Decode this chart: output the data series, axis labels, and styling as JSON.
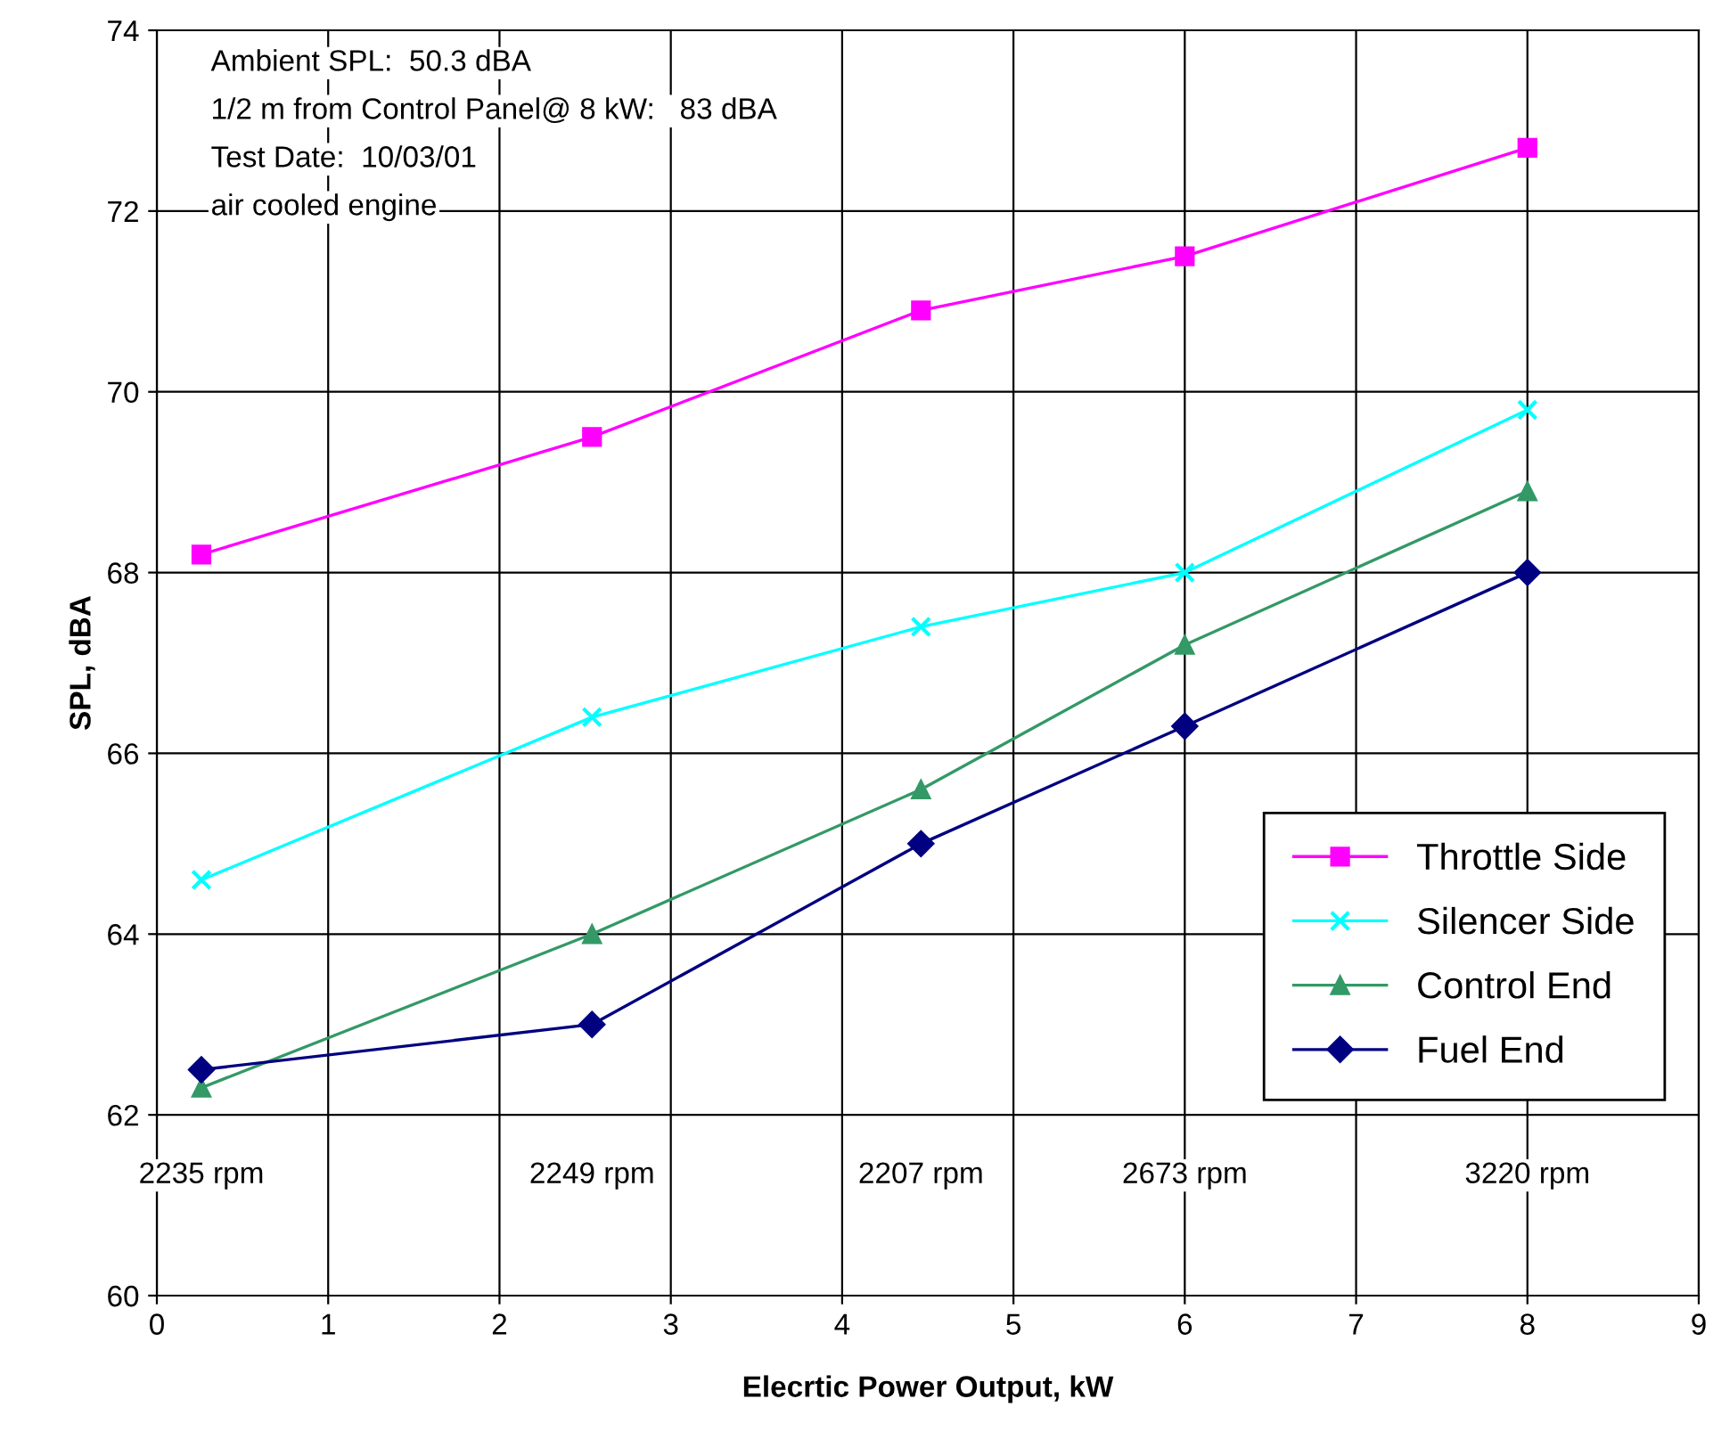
{
  "chart_data": {
    "type": "line",
    "xlabel": "Elecrtic Power Output, kW",
    "ylabel": "SPL, dBA",
    "x": [
      0.26,
      2.54,
      4.46,
      6.0,
      8.0
    ],
    "series": [
      {
        "name": "Throttle Side",
        "color": "#ff00ff",
        "marker": "square",
        "values": [
          68.2,
          69.5,
          70.9,
          71.5,
          72.7
        ]
      },
      {
        "name": "Silencer Side",
        "color": "#00ffff",
        "marker": "cross",
        "values": [
          64.6,
          66.4,
          67.4,
          68.0,
          69.8
        ]
      },
      {
        "name": "Control End",
        "color": "#339966",
        "marker": "triangle",
        "values": [
          62.3,
          64.0,
          65.6,
          67.2,
          68.9
        ]
      },
      {
        "name": "Fuel End",
        "color": "#000080",
        "marker": "diamond",
        "values": [
          62.5,
          63.0,
          65.0,
          66.3,
          68.0
        ]
      }
    ],
    "xlim": [
      0,
      9
    ],
    "xticks": [
      0,
      1,
      2,
      3,
      4,
      5,
      6,
      7,
      8,
      9
    ],
    "ylim": [
      60,
      74
    ],
    "yticks": [
      60,
      62,
      64,
      66,
      68,
      70,
      72,
      74
    ],
    "grid": true,
    "legend": "bottom right",
    "line_style": "solid",
    "annotations": [
      "Ambient SPL:  50.3 dBA",
      "1/2 m from Control Panel@ 8 kW:   83 dBA",
      "Test Date:  10/03/01",
      "air cooled engine",
      "2235 rpm",
      "2249 rpm",
      "2207 rpm",
      "2673 rpm",
      "3220 rpm"
    ]
  }
}
